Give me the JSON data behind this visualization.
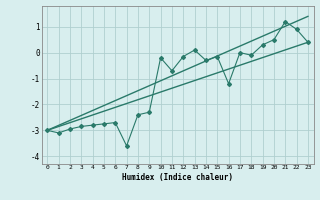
{
  "xlabel": "Humidex (Indice chaleur)",
  "ylabel": "",
  "background_color": "#d8eeee",
  "grid_color": "#b0cfcf",
  "line_color": "#2a7a6a",
  "xlim": [
    -0.5,
    23.5
  ],
  "ylim": [
    -4.3,
    1.8
  ],
  "xticks": [
    0,
    1,
    2,
    3,
    4,
    5,
    6,
    7,
    8,
    9,
    10,
    11,
    12,
    13,
    14,
    15,
    16,
    17,
    18,
    19,
    20,
    21,
    22,
    23
  ],
  "yticks": [
    -4,
    -3,
    -2,
    -1,
    0,
    1
  ],
  "data_x": [
    0,
    1,
    2,
    3,
    4,
    5,
    6,
    7,
    8,
    9,
    10,
    11,
    12,
    13,
    14,
    15,
    16,
    17,
    18,
    19,
    20,
    21,
    22,
    23
  ],
  "data_y": [
    -3.0,
    -3.1,
    -2.95,
    -2.85,
    -2.8,
    -2.75,
    -2.7,
    -3.6,
    -2.4,
    -2.3,
    -0.2,
    -0.7,
    -0.15,
    0.1,
    -0.3,
    -0.15,
    -1.2,
    0.0,
    -0.1,
    0.3,
    0.5,
    1.2,
    0.9,
    0.4
  ],
  "line1_x": [
    0,
    23
  ],
  "line1_y": [
    -3.0,
    1.4
  ],
  "line2_x": [
    0,
    23
  ],
  "line2_y": [
    -3.0,
    0.4
  ]
}
